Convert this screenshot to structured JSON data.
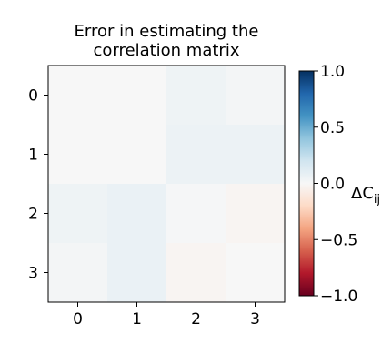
{
  "chart_data": {
    "type": "heatmap",
    "title_lines": [
      "Error in estimating the",
      "correlation matrix"
    ],
    "x_ticks": [
      "0",
      "1",
      "2",
      "3"
    ],
    "y_ticks": [
      "0",
      "1",
      "2",
      "3"
    ],
    "matrix": [
      [
        0.0,
        0.0,
        0.05,
        0.02
      ],
      [
        0.0,
        0.0,
        0.06,
        0.06
      ],
      [
        0.05,
        0.07,
        0.01,
        -0.02
      ],
      [
        0.02,
        0.07,
        -0.02,
        0.0
      ]
    ],
    "colorbar": {
      "label": "ΔC",
      "label_sub": "ij",
      "range": [
        -1.0,
        1.0
      ],
      "ticks": [
        "−1.0",
        "−0.5",
        "0.0",
        "0.5",
        "1.0"
      ],
      "tick_values": [
        -1.0,
        -0.5,
        0.0,
        0.5,
        1.0
      ],
      "colormap": "RdBu"
    }
  }
}
